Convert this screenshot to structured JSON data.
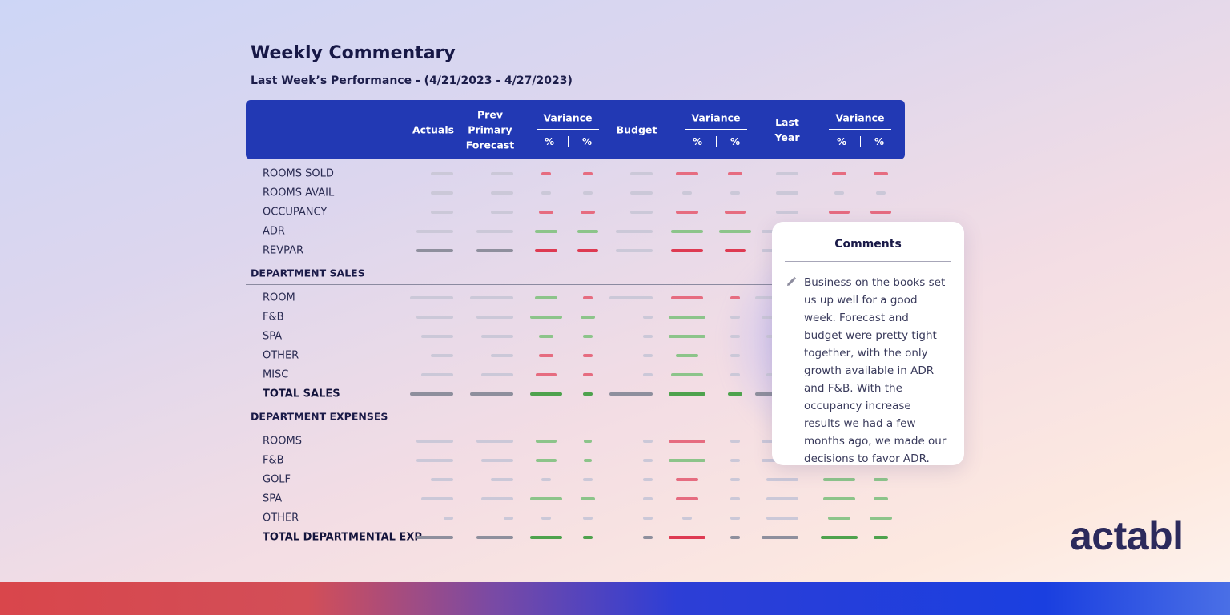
{
  "title": "Weekly Commentary",
  "subtitle": "Last Week’s Performance - (4/21/2023 - 4/27/2023)",
  "table": {
    "columns": [
      {
        "label": "Actuals"
      },
      {
        "label": "Prev Primary Forecast"
      },
      {
        "label": "Variance",
        "sub": [
          "%",
          "%"
        ]
      },
      {
        "label": "Budget"
      },
      {
        "label": "Variance",
        "sub": [
          "%",
          "%"
        ]
      },
      {
        "label": "Last Year"
      },
      {
        "label": "Variance",
        "sub": [
          "%",
          "%"
        ]
      }
    ],
    "rows": [
      "ROOMS SOLD",
      "ROOMS AVAIL",
      "OCCUPANCY",
      "ADR",
      "REVPAR"
    ],
    "sections": [
      {
        "title": "DEPARTMENT SALES",
        "rows": [
          "ROOM",
          "F&B",
          "SPA",
          "OTHER",
          "MISC",
          "TOTAL SALES"
        ]
      },
      {
        "title": "DEPARTMENT EXPENSES",
        "rows": [
          "ROOMS",
          "F&B",
          "GOLF",
          "SPA",
          "OTHER",
          "TOTAL DEPARTMENTAL EXP"
        ]
      }
    ]
  },
  "comments": {
    "title": "Comments",
    "text": "Business on the books set us up well for a good week. Forecast and budget were pretty tight together, with the only growth available in ADR and F&B. With the occupancy increase results we had a few months ago, we made our decisions to favor ADR."
  },
  "logo": "actabl"
}
